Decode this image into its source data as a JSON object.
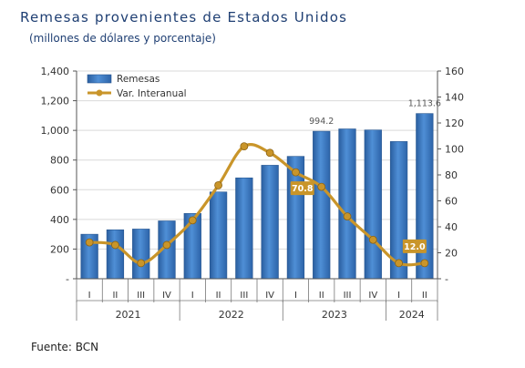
{
  "chart_data": {
    "type": "bar",
    "title": "Remesas provenientes de Estados Unidos",
    "subtitle": "(millones de dólares y porcentaje)",
    "source": "Fuente: BCN",
    "categories": [
      "I",
      "II",
      "III",
      "IV",
      "I",
      "II",
      "III",
      "IV",
      "I",
      "II",
      "III",
      "IV",
      "I",
      "II"
    ],
    "year_groups": [
      {
        "label": "2021",
        "count": 4
      },
      {
        "label": "2022",
        "count": 4
      },
      {
        "label": "2023",
        "count": 4
      },
      {
        "label": "2024",
        "count": 2
      }
    ],
    "series": [
      {
        "name": "Remesas",
        "type": "bar",
        "axis": "left",
        "color": "#3a78c3",
        "values": [
          300,
          330,
          335,
          390,
          440,
          585,
          680,
          765,
          825,
          994.2,
          1010,
          1003,
          925,
          1113.6
        ]
      },
      {
        "name": "Var. Interanual",
        "type": "line",
        "axis": "right",
        "color": "#c9952a",
        "values": [
          28,
          26,
          12,
          26,
          45,
          72,
          102,
          97,
          82,
          70.8,
          48,
          30,
          12,
          12.0
        ]
      }
    ],
    "left_axis": {
      "min": 0,
      "max": 1400,
      "step": 200,
      "tick_labels": [
        "-",
        "200",
        "400",
        "600",
        "800",
        "1,000",
        "1,200",
        "1,400"
      ]
    },
    "right_axis": {
      "min": 0,
      "max": 160,
      "step": 20,
      "tick_labels": [
        "-",
        "20",
        "40",
        "60",
        "80",
        "100",
        "120",
        "140",
        "160"
      ]
    },
    "bar_labels": [
      {
        "index": 9,
        "text": "994.2"
      },
      {
        "index": 13,
        "text": "1,113.6"
      }
    ],
    "line_labels": [
      {
        "index": 9,
        "text": "70.8"
      },
      {
        "index": 13,
        "text": "12.0"
      }
    ],
    "legend_position": "top-left",
    "grid": true
  }
}
